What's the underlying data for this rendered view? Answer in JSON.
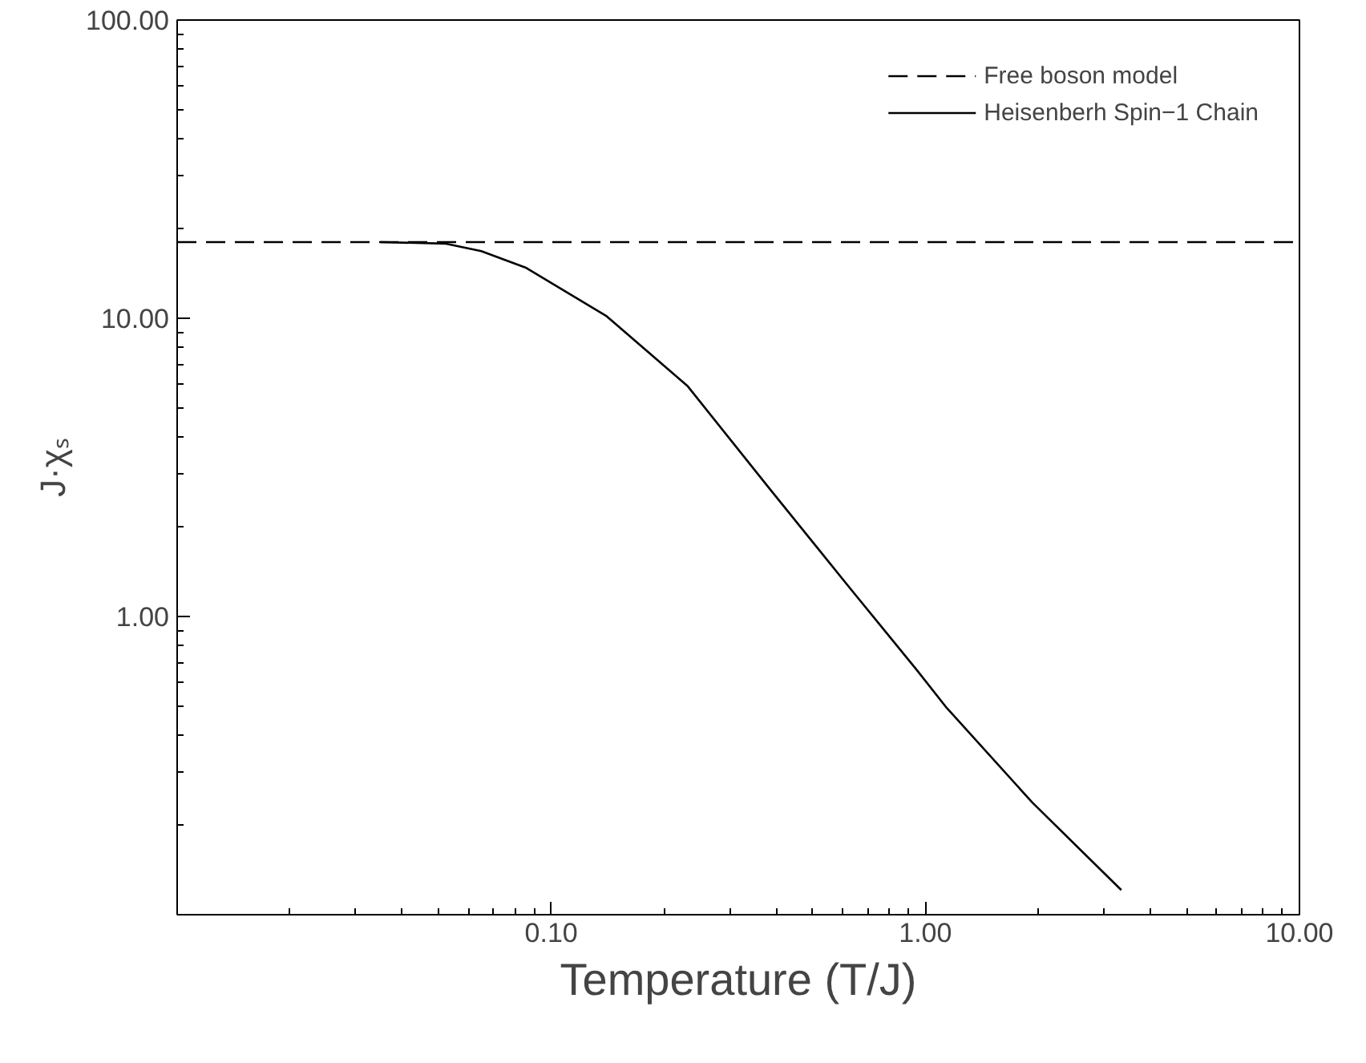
{
  "chart_data": {
    "type": "line",
    "xlabel": "Temperature (T/J)",
    "ylabel": "J·χₛ",
    "log": "xy",
    "xlim": [
      0.01,
      10
    ],
    "ylim": [
      0.1,
      100
    ],
    "xticks": [
      {
        "value": 0.1,
        "label": "0.10"
      },
      {
        "value": 1,
        "label": "1.00"
      },
      {
        "value": 10,
        "label": "10.00"
      }
    ],
    "yticks": [
      {
        "value": 1,
        "label": "1.00"
      },
      {
        "value": 10,
        "label": "10.00"
      },
      {
        "value": 100,
        "label": "100.00"
      }
    ],
    "legend": "top right",
    "grid": false,
    "series": [
      {
        "name": "Free boson model",
        "color": "#000000",
        "line_style": "dashed",
        "x": [
          0.01,
          10
        ],
        "values": [
          18,
          18
        ]
      },
      {
        "name": "Heisenberh Spin−1 Chain",
        "color": "#000000",
        "line_style": "solid",
        "x": [
          0.035,
          0.052,
          0.065,
          0.0853,
          0.14,
          0.231,
          0.38,
          0.627,
          0.95,
          1.14,
          1.93,
          3.34
        ],
        "values": [
          18,
          17.8,
          16.8,
          14.8,
          10.2,
          5.94,
          2.72,
          1.25,
          0.66,
          0.494,
          0.238,
          0.121
        ]
      }
    ]
  }
}
